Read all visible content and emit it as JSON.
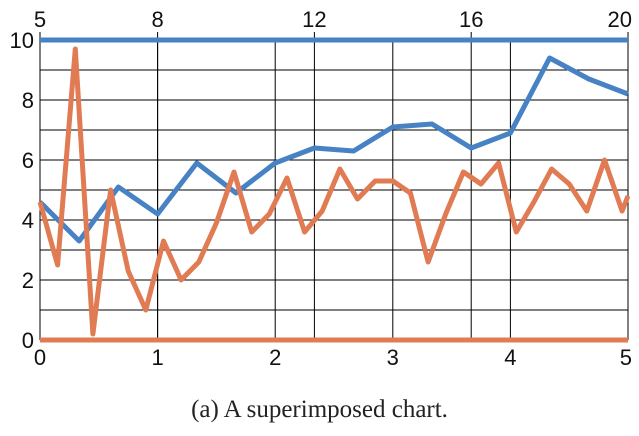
{
  "chart_data": {
    "type": "line",
    "caption": "(a)  A superimposed chart.",
    "grid": true,
    "legend": "none",
    "colors": {
      "top_series": "#4682c4",
      "bottom_series": "#e07b54",
      "grid": "#000000",
      "text": "#111111"
    },
    "x_top": {
      "range": [
        5,
        20
      ],
      "ticks": [
        "5",
        "8",
        "12",
        "16",
        "20"
      ],
      "tick_values": [
        5,
        8,
        12,
        16,
        20
      ]
    },
    "x_bottom": {
      "range": [
        0,
        5
      ],
      "ticks": [
        "0",
        "1",
        "2",
        "3",
        "4",
        "5"
      ],
      "tick_values": [
        0,
        1,
        2,
        3,
        4,
        5
      ]
    },
    "y": {
      "range": [
        0,
        10
      ],
      "ticks": [
        "0",
        "2",
        "4",
        "6",
        "8",
        "10"
      ],
      "tick_values": [
        0,
        2,
        4,
        6,
        8,
        10
      ],
      "minor_step": 1
    },
    "series": [
      {
        "axis": "top",
        "x": [
          5,
          6,
          7,
          8,
          9,
          10,
          11,
          12,
          13,
          14,
          15,
          16,
          17,
          18,
          19,
          20
        ],
        "y": [
          4.6,
          3.3,
          5.1,
          4.2,
          5.9,
          4.9,
          5.9,
          6.4,
          6.3,
          7.1,
          7.2,
          6.4,
          6.9,
          9.4,
          8.7,
          8.2
        ]
      },
      {
        "axis": "bottom",
        "x": [
          0,
          0.15,
          0.3,
          0.45,
          0.6,
          0.75,
          0.9,
          1.05,
          1.2,
          1.35,
          1.5,
          1.65,
          1.8,
          1.95,
          2.1,
          2.25,
          2.4,
          2.55,
          2.7,
          2.85,
          3.0,
          3.15,
          3.3,
          3.45,
          3.6,
          3.75,
          3.9,
          4.05,
          4.2,
          4.35,
          4.5,
          4.65,
          4.8,
          4.95,
          5.0
        ],
        "y": [
          4.6,
          2.5,
          9.7,
          0.2,
          5.0,
          2.3,
          1.0,
          3.3,
          2.0,
          2.6,
          3.9,
          5.6,
          3.6,
          4.2,
          5.4,
          3.6,
          4.3,
          5.7,
          4.7,
          5.3,
          5.3,
          4.9,
          2.6,
          4.2,
          5.6,
          5.2,
          5.9,
          3.6,
          4.6,
          5.7,
          5.2,
          4.3,
          6.0,
          4.3,
          4.8
        ]
      }
    ]
  }
}
